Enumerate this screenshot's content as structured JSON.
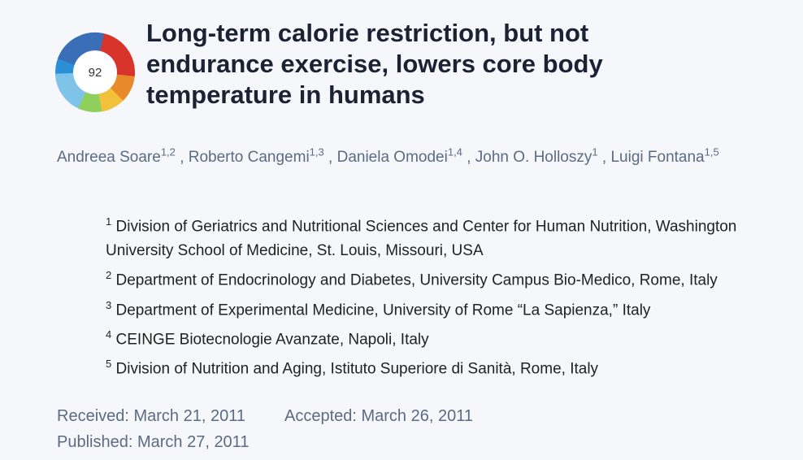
{
  "altmetric_score": 92,
  "title": "Long-term calorie restriction, but not endurance exercise, lowers core body temperature in humans",
  "separator": ",",
  "authors": [
    {
      "name": "Andreea Soare",
      "sup": "1,2"
    },
    {
      "name": "Roberto Cangemi",
      "sup": "1,3"
    },
    {
      "name": "Daniela Omodei",
      "sup": "1,4"
    },
    {
      "name": "John O. Holloszy",
      "sup": "1"
    },
    {
      "name": "Luigi Fontana",
      "sup": "1,5"
    }
  ],
  "affiliations": [
    {
      "num": "1",
      "text": "Division of Geriatrics and Nutritional Sciences and Center for Human Nutrition, Washington University School of Medicine, St. Louis, Missouri, USA"
    },
    {
      "num": "2",
      "text": "Department of Endocrinology and Diabetes, University Campus Bio-Medico, Rome, Italy"
    },
    {
      "num": "3",
      "text": "Department of Experimental Medicine, University of Rome “La Sapienza,” Italy"
    },
    {
      "num": "4",
      "text": "CEINGE Biotecnologie Avanzate, Napoli, Italy"
    },
    {
      "num": "5",
      "text": "Division of Nutrition and Aging, Istituto Superiore di Sanità, Rome, Italy"
    }
  ],
  "dates": {
    "received": "Received: March 21, 2011",
    "accepted": "Accepted: March 26, 2011",
    "published": "Published: March 27, 2011"
  }
}
